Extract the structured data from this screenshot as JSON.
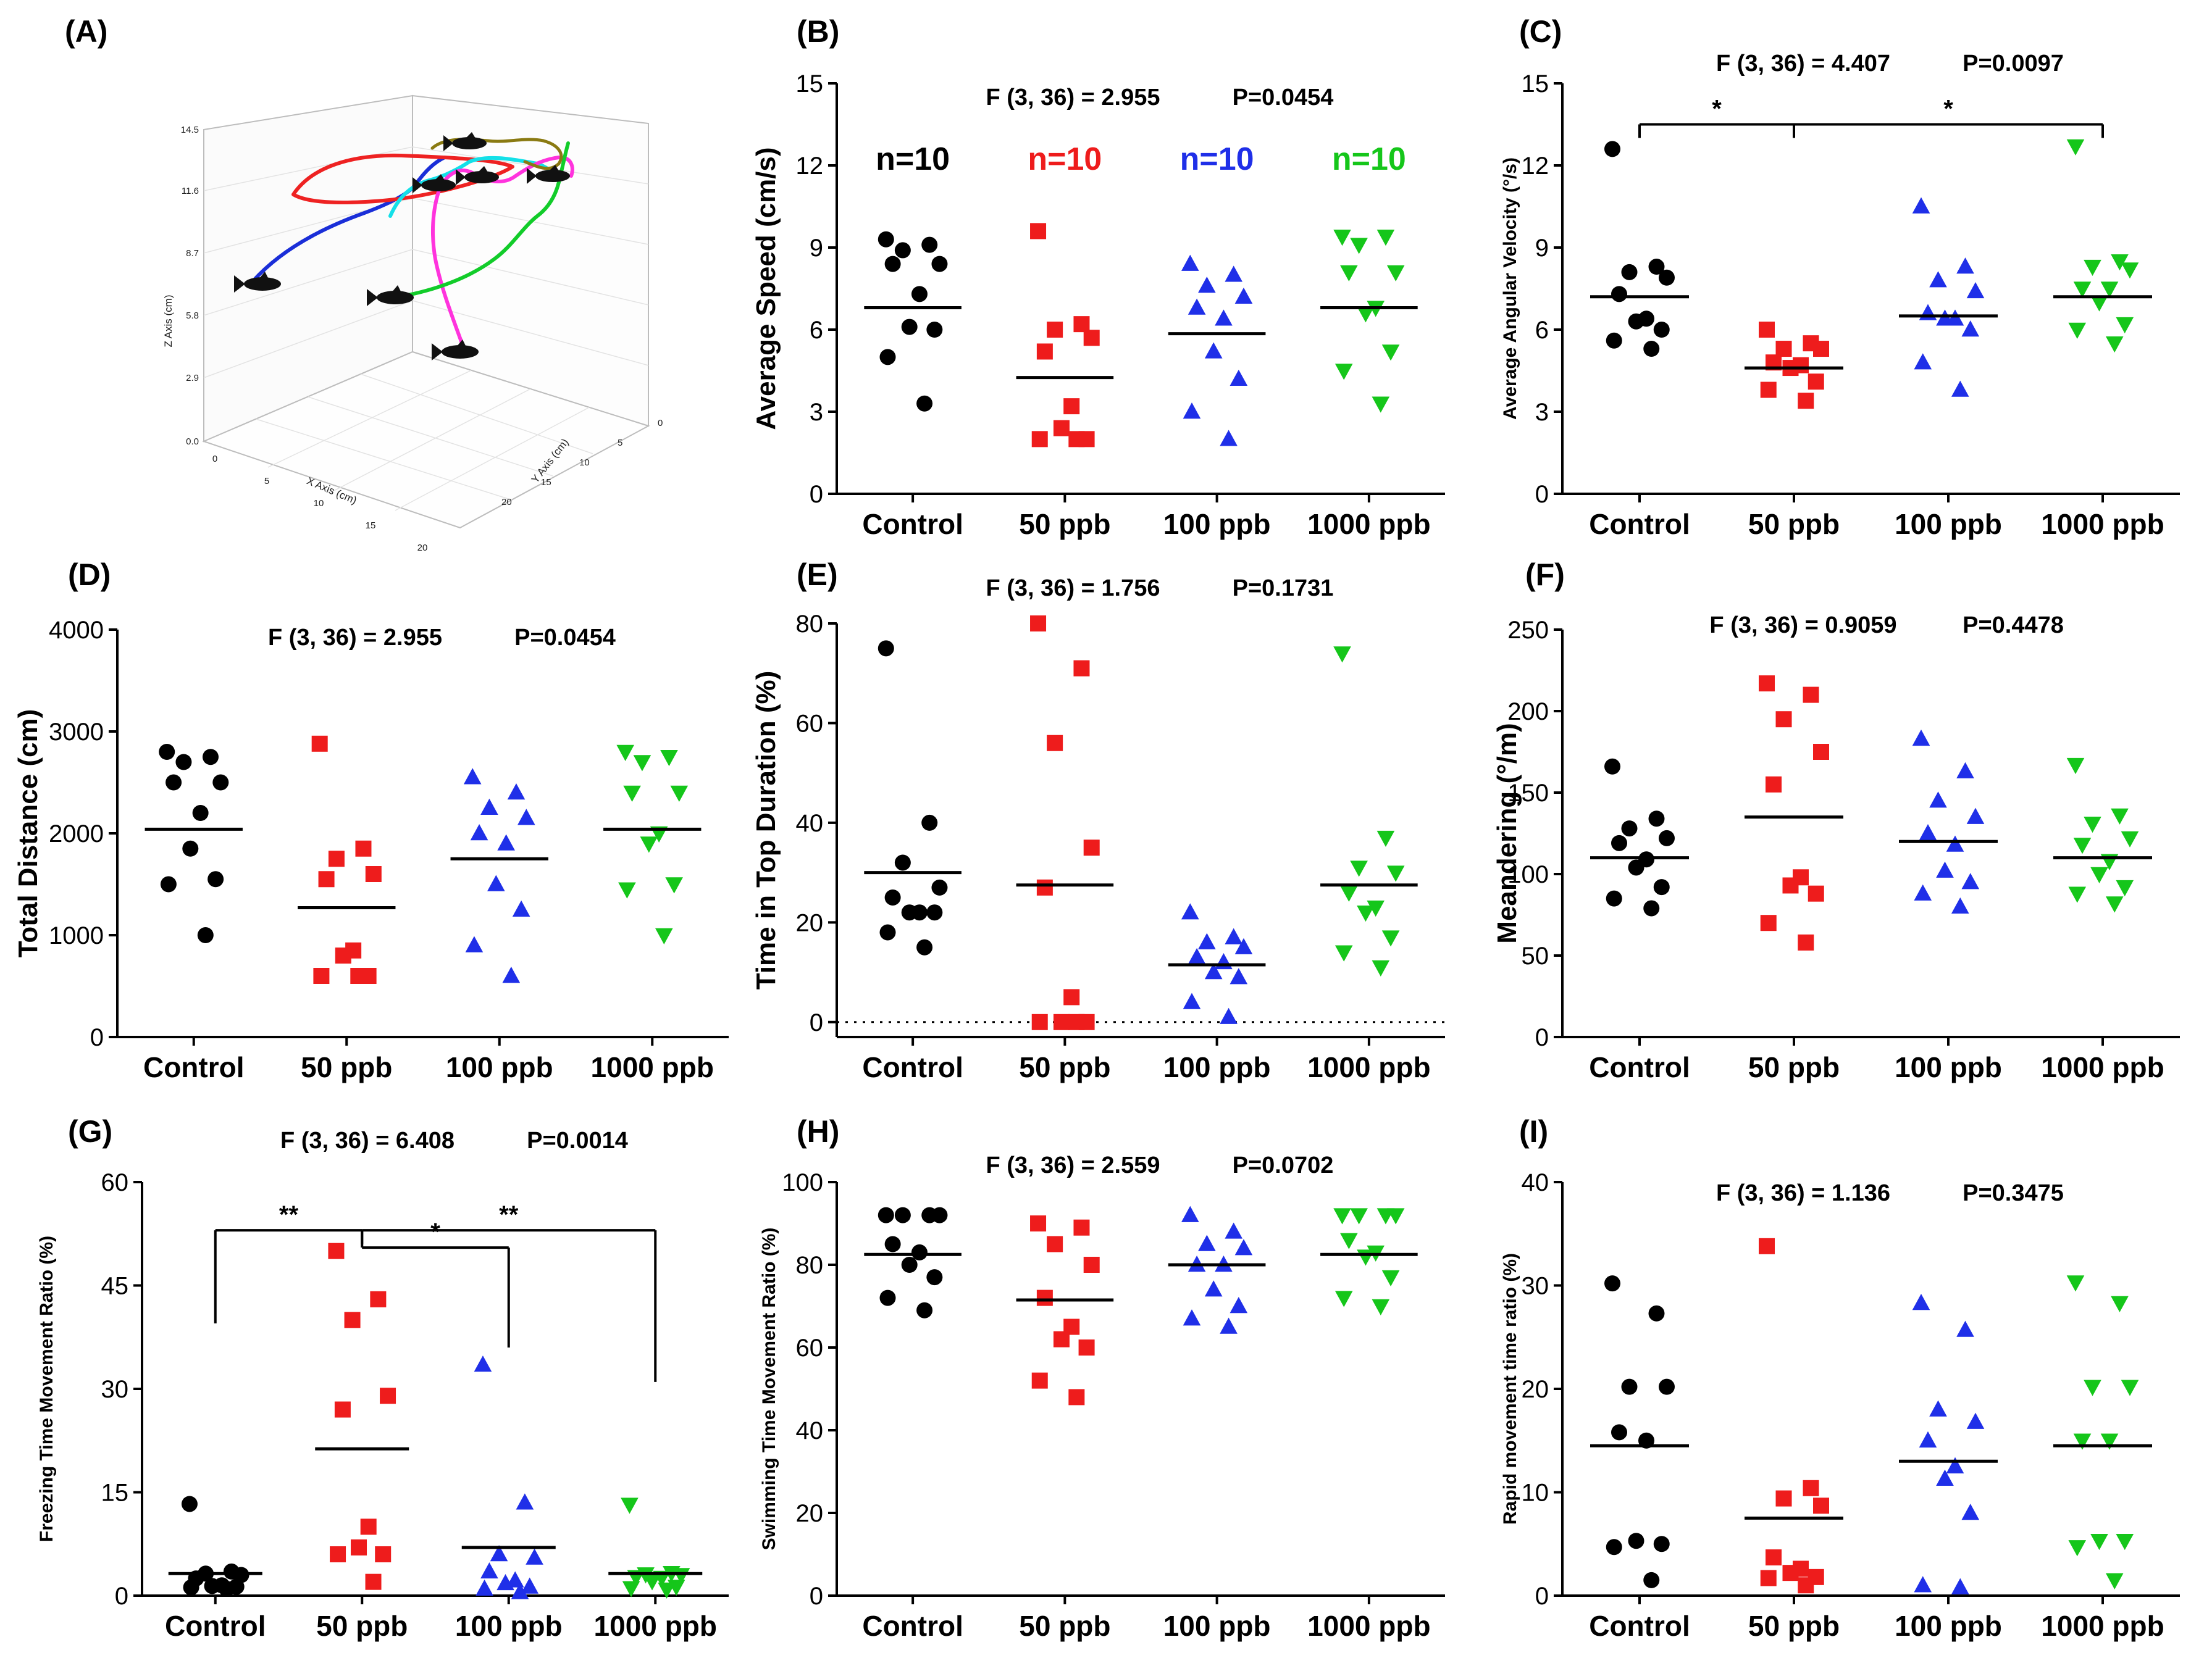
{
  "figure": {
    "colors": {
      "Control": "#000000",
      "50 ppb": "#ee1c1c",
      "100 ppb": "#1f2fe8",
      "1000 ppb": "#15c61a"
    },
    "markers": {
      "Control": "circle",
      "50 ppb": "square",
      "100 ppb": "triangle-up",
      "1000 ppb": "triangle-down"
    }
  },
  "panel_a": {
    "label": "(A)",
    "type": "3d-trajectory",
    "z_label": "Z Axis (cm)",
    "x_label": "X Axis (cm)",
    "y_label": "Y Axis (cm)",
    "z_ticks": [
      "0.0",
      "2.9",
      "5.8",
      "8.7",
      "11.6",
      "14.5"
    ],
    "x_ticks": [
      "0",
      "5",
      "10",
      "15",
      "20"
    ],
    "y_ticks": [
      "0",
      "5",
      "10",
      "15",
      "20"
    ],
    "track_colors": [
      "#1a2ed8",
      "#ee2222",
      "#14e0e8",
      "#ff33dd",
      "#12cc2a",
      "#8a7a12"
    ],
    "fish_icon": "fish-icon"
  },
  "chart_data": [
    {
      "id": "B",
      "label": "(B)",
      "type": "scatter",
      "categories": [
        "Control",
        "50 ppb",
        "100 ppb",
        "1000 ppb"
      ],
      "ylabel": "Average Speed (cm/s)",
      "ylim": [
        0,
        15
      ],
      "yticks": [
        0,
        3,
        6,
        9,
        12,
        15
      ],
      "ytick_labels": [
        "0",
        "3",
        "6",
        "9",
        "12",
        "15"
      ],
      "stat": "F (3, 36) = 2.955",
      "pvalue": "P=0.0454",
      "n_labels": [
        "n=10",
        "n=10",
        "n=10",
        "n=10"
      ],
      "means": [
        6.8,
        4.25,
        5.85,
        6.8
      ],
      "series": [
        {
          "name": "Control",
          "values": [
            9.3,
            9.1,
            8.9,
            8.4,
            8.4,
            7.3,
            6.1,
            6.0,
            5.0,
            3.3
          ]
        },
        {
          "name": "50 ppb",
          "values": [
            9.6,
            6.2,
            6.0,
            5.7,
            5.2,
            3.2,
            2.4,
            2.0,
            2.0,
            2.0
          ]
        },
        {
          "name": "100 ppb",
          "values": [
            8.4,
            8.0,
            7.6,
            7.2,
            6.8,
            6.4,
            5.2,
            4.2,
            3.0,
            2.0
          ]
        },
        {
          "name": "1000 ppb",
          "values": [
            9.4,
            9.4,
            9.1,
            8.1,
            8.1,
            6.8,
            6.6,
            5.2,
            4.5,
            3.3
          ]
        }
      ]
    },
    {
      "id": "C",
      "label": "(C)",
      "type": "scatter",
      "categories": [
        "Control",
        "50 ppb",
        "100 ppb",
        "1000 ppb"
      ],
      "ylabel": "Average Angular Velocity (°/s)",
      "ylim": [
        0,
        15
      ],
      "yticks": [
        0,
        3,
        6,
        9,
        12,
        15
      ],
      "ytick_labels": [
        "0",
        "3",
        "6",
        "9",
        "12",
        "15"
      ],
      "stat": "F (3, 36) = 4.407",
      "pvalue": "P=0.0097",
      "means": [
        7.2,
        4.6,
        6.5,
        7.2
      ],
      "brackets": [
        {
          "from": 0,
          "to": 1,
          "y": 13.5,
          "label": "*",
          "ticks_down": true
        },
        {
          "from": 1,
          "to": 3,
          "y": 13.5,
          "label": "*",
          "ticks_down": true
        }
      ],
      "series": [
        {
          "name": "Control",
          "values": [
            12.6,
            8.3,
            8.1,
            7.9,
            7.3,
            6.4,
            6.3,
            6.0,
            5.6,
            5.3
          ]
        },
        {
          "name": "50 ppb",
          "values": [
            6.0,
            5.5,
            5.3,
            5.3,
            4.8,
            4.7,
            4.6,
            4.1,
            3.8,
            3.4
          ]
        },
        {
          "name": "100 ppb",
          "values": [
            10.5,
            8.3,
            7.8,
            7.4,
            6.6,
            6.4,
            6.4,
            6.0,
            4.8,
            3.8
          ]
        },
        {
          "name": "1000 ppb",
          "values": [
            12.7,
            8.5,
            8.3,
            8.2,
            7.5,
            7.5,
            7.0,
            6.2,
            6.0,
            5.5
          ]
        }
      ]
    },
    {
      "id": "D",
      "label": "(D)",
      "type": "scatter",
      "categories": [
        "Control",
        "50 ppb",
        "100 ppb",
        "1000 ppb"
      ],
      "ylabel": "Total Distance (cm)",
      "ylim": [
        0,
        4000
      ],
      "yticks": [
        0,
        1000,
        2000,
        3000,
        4000
      ],
      "ytick_labels": [
        "0",
        "1000",
        "2000",
        "3000",
        "4000"
      ],
      "stat": "F (3, 36) = 2.955",
      "pvalue": "P=0.0454",
      "means": [
        2040,
        1270,
        1750,
        2040
      ],
      "series": [
        {
          "name": "Control",
          "values": [
            2800,
            2750,
            2700,
            2500,
            2500,
            2200,
            1850,
            1550,
            1500,
            1000
          ]
        },
        {
          "name": "50 ppb",
          "values": [
            2880,
            1850,
            1750,
            1600,
            1550,
            850,
            800,
            600,
            600,
            600
          ]
        },
        {
          "name": "100 ppb",
          "values": [
            2550,
            2400,
            2250,
            2150,
            2000,
            1900,
            1500,
            1250,
            900,
            600
          ]
        },
        {
          "name": "1000 ppb",
          "values": [
            2800,
            2750,
            2700,
            2400,
            2400,
            2000,
            1900,
            1500,
            1450,
            1000
          ]
        }
      ]
    },
    {
      "id": "E",
      "label": "(E)",
      "type": "scatter",
      "categories": [
        "Control",
        "50 ppb",
        "100 ppb",
        "1000 ppb"
      ],
      "ylabel": "Time in Top Duration (%)",
      "ylim": [
        -3,
        80
      ],
      "yticks": [
        0,
        20,
        40,
        60,
        80
      ],
      "ytick_labels": [
        "0",
        "20",
        "40",
        "60",
        "80"
      ],
      "stat": "F (3, 36) = 1.756",
      "pvalue": "P=0.1731",
      "zero_line": true,
      "means": [
        30,
        27.5,
        11.5,
        27.5
      ],
      "series": [
        {
          "name": "Control",
          "values": [
            75,
            40,
            32,
            27,
            25,
            22,
            22,
            22,
            18,
            15
          ]
        },
        {
          "name": "50 ppb",
          "values": [
            80,
            71,
            56,
            35,
            27,
            5,
            0,
            0,
            0,
            0
          ]
        },
        {
          "name": "100 ppb",
          "values": [
            22,
            17,
            16,
            15,
            13,
            12,
            10,
            9,
            4,
            1
          ]
        },
        {
          "name": "1000 ppb",
          "values": [
            74,
            37,
            31,
            30,
            26,
            23,
            22,
            17,
            14,
            11
          ]
        }
      ]
    },
    {
      "id": "F",
      "label": "(F)",
      "type": "scatter",
      "categories": [
        "Control",
        "50 ppb",
        "100 ppb",
        "1000 ppb"
      ],
      "ylabel": "Meandering (°/m)",
      "ylim": [
        0,
        250
      ],
      "yticks": [
        0,
        50,
        100,
        150,
        200,
        250
      ],
      "ytick_labels": [
        "0",
        "50",
        "100",
        "150",
        "200",
        "250"
      ],
      "stat": "F (3, 36) = 0.9059",
      "pvalue": "P=0.4478",
      "means": [
        110,
        135,
        120,
        110
      ],
      "series": [
        {
          "name": "Control",
          "values": [
            166,
            134,
            128,
            122,
            119,
            109,
            104,
            92,
            85,
            79
          ]
        },
        {
          "name": "50 ppb",
          "values": [
            217,
            210,
            195,
            175,
            155,
            98,
            93,
            88,
            70,
            58
          ]
        },
        {
          "name": "100 ppb",
          "values": [
            183,
            163,
            145,
            135,
            125,
            118,
            102,
            95,
            88,
            80
          ]
        },
        {
          "name": "1000 ppb",
          "values": [
            167,
            136,
            131,
            122,
            118,
            108,
            100,
            92,
            88,
            82
          ]
        }
      ]
    },
    {
      "id": "G",
      "label": "(G)",
      "type": "scatter",
      "categories": [
        "Control",
        "50 ppb",
        "100 ppb",
        "1000 ppb"
      ],
      "ylabel": "Freezing Time Movement Ratio (%)",
      "ylim": [
        0,
        60
      ],
      "yticks": [
        0,
        15,
        30,
        45,
        60
      ],
      "ytick_labels": [
        "0",
        "15",
        "30",
        "45",
        "60"
      ],
      "stat": "F (3, 36) = 6.408",
      "pvalue": "P=0.0014",
      "means": [
        3.2,
        21.3,
        7.0,
        3.2
      ],
      "brackets": [
        {
          "from": 0,
          "to": 1,
          "y": 53,
          "label": "**",
          "left_drop": 39.5,
          "right_drop": 51
        },
        {
          "from": 1,
          "to": 2,
          "y": 50.5,
          "label": "*",
          "left_drop": 51,
          "right_drop": 36
        },
        {
          "from": 1,
          "to": 3,
          "y": 53,
          "label": "**",
          "left_drop": 51,
          "right_drop": 31
        }
      ],
      "series": [
        {
          "name": "Control",
          "values": [
            13.3,
            3.5,
            3.2,
            3.0,
            2.5,
            1.5,
            1.4,
            1.3,
            1.2,
            1.0
          ]
        },
        {
          "name": "50 ppb",
          "values": [
            50,
            43,
            40,
            29,
            27,
            10,
            7,
            6,
            6,
            2
          ]
        },
        {
          "name": "100 ppb",
          "values": [
            33.5,
            13.5,
            6.0,
            5.5,
            3.5,
            2.2,
            1.8,
            1.3,
            1.0,
            0.5
          ]
        },
        {
          "name": "1000 ppb",
          "values": [
            13.2,
            3.3,
            3.1,
            3.0,
            2.7,
            2.6,
            2.1,
            1.3,
            1.1,
            0.9
          ]
        }
      ]
    },
    {
      "id": "H",
      "label": "(H)",
      "type": "scatter",
      "categories": [
        "Control",
        "50 ppb",
        "100 ppb",
        "1000 ppb"
      ],
      "ylabel": "Swimming Time Movement  Ratio (%)",
      "ylim": [
        0,
        100
      ],
      "yticks": [
        0,
        20,
        40,
        60,
        80,
        100
      ],
      "ytick_labels": [
        "0",
        "20",
        "40",
        "60",
        "80",
        "100"
      ],
      "stat": "F (3, 36) = 2.559",
      "pvalue": "P=0.0702",
      "means": [
        82.5,
        71.5,
        80,
        82.5
      ],
      "series": [
        {
          "name": "Control",
          "values": [
            92,
            92,
            92,
            92,
            85,
            83,
            80,
            77,
            72,
            69
          ]
        },
        {
          "name": "50 ppb",
          "values": [
            90,
            89,
            85,
            80,
            72,
            65,
            62,
            60,
            52,
            48
          ]
        },
        {
          "name": "100 ppb",
          "values": [
            92,
            88,
            85,
            84,
            80,
            80,
            74,
            70,
            67,
            65
          ]
        },
        {
          "name": "1000 ppb",
          "values": [
            92,
            92,
            92,
            92,
            86,
            83,
            82,
            77,
            72,
            70
          ]
        }
      ]
    },
    {
      "id": "I",
      "label": "(I)",
      "type": "scatter",
      "categories": [
        "Control",
        "50 ppb",
        "100 ppb",
        "1000 ppb"
      ],
      "ylabel": "Rapid movement time ratio (%)",
      "ylim": [
        0,
        40
      ],
      "yticks": [
        0,
        10,
        20,
        30,
        40
      ],
      "ytick_labels": [
        "0",
        "10",
        "20",
        "30",
        "40"
      ],
      "stat": "F (3, 36) = 1.136",
      "pvalue": "P=0.3475",
      "means": [
        14.5,
        7.5,
        13,
        14.5
      ],
      "series": [
        {
          "name": "Control",
          "values": [
            30.2,
            27.3,
            20.2,
            20.2,
            15.8,
            15.0,
            5.3,
            5.0,
            4.7,
            1.5
          ]
        },
        {
          "name": "50 ppb",
          "values": [
            33.8,
            10.4,
            9.4,
            8.7,
            3.7,
            2.6,
            2.2,
            1.8,
            1.7,
            1.0
          ]
        },
        {
          "name": "100 ppb",
          "values": [
            28.3,
            25.7,
            18.0,
            16.8,
            15.0,
            12.5,
            11.3,
            8.0,
            1.0,
            0.8
          ]
        },
        {
          "name": "1000 ppb",
          "values": [
            30.3,
            28.3,
            20.2,
            20.2,
            15.0,
            15.0,
            5.3,
            5.3,
            4.7,
            1.5
          ]
        }
      ]
    }
  ]
}
